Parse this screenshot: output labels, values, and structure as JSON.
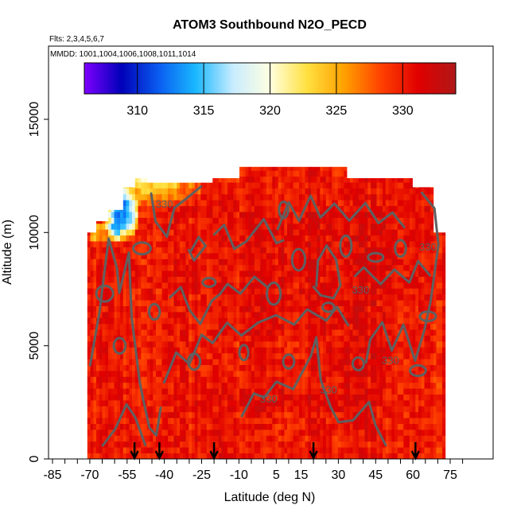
{
  "chart_data": {
    "type": "heatmap",
    "title": "ATOM3 Southbound N2O_PECD",
    "notes": [
      "Flts: 2,3,4,5,6,7",
      "MMDD: 1001,1004,1006,1008,1011,1014"
    ],
    "xlabel": "Latitude (deg N)",
    "ylabel": "Altitude (m)",
    "xlim": [
      -85,
      88
    ],
    "ylim": [
      0,
      17500
    ],
    "x_ticks": [
      -85,
      -70,
      -55,
      -40,
      -25,
      -10,
      5,
      15,
      30,
      45,
      60,
      75
    ],
    "y_ticks": [
      0,
      5000,
      10000,
      15000
    ],
    "colorbar": {
      "range": [
        306,
        334
      ],
      "ticks": [
        310,
        315,
        320,
        325,
        330
      ],
      "colors": [
        "#7f00ff",
        "#0000b8",
        "#0a5cf0",
        "#1ab8ff",
        "#c8ecff",
        "#ffffe0",
        "#ffe040",
        "#ffa000",
        "#ff4000",
        "#e00000",
        "#b01818"
      ]
    },
    "contour_level": 330,
    "contour_labels": [
      "330",
      "330",
      "330",
      "330",
      "330",
      "330"
    ],
    "flight_markers_lat": [
      -52,
      -42,
      -20,
      20,
      61
    ],
    "domain": {
      "lat_min": -71,
      "lat_max": 72,
      "alt_max": 12900
    },
    "value_field": "N2O mostly 328-334 ppb throughout the troposphere; lower values (310-326 ppb) near 11000-12500 m between 60S and 35S"
  }
}
